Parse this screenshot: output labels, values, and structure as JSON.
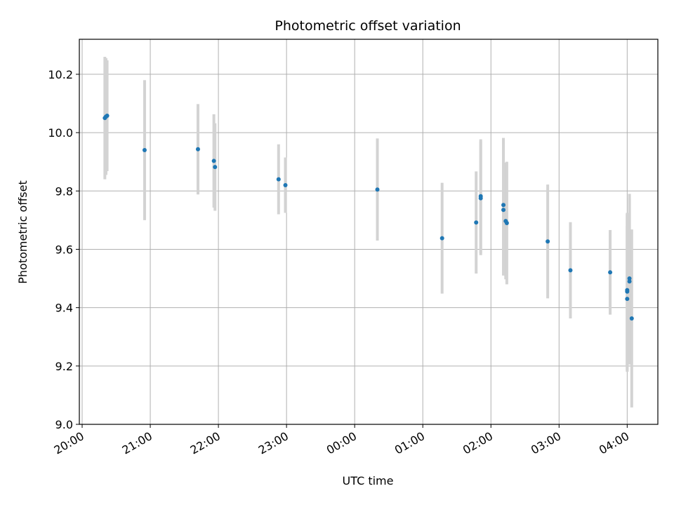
{
  "chart_data": {
    "type": "scatter",
    "title": "Photometric offset variation",
    "xlabel": "UTC time",
    "ylabel": "Photometric offset",
    "grid": true,
    "x_axis": "time (hours of night, 20:00 through 04:30 UTC)",
    "xlim": [
      "20:00",
      "04:27"
    ],
    "ylim": [
      9.0,
      10.32
    ],
    "x_ticks": [
      "20:00",
      "21:00",
      "22:00",
      "23:00",
      "00:00",
      "01:00",
      "02:00",
      "03:00",
      "04:00"
    ],
    "y_ticks": [
      "9.0",
      "9.2",
      "9.4",
      "9.6",
      "9.8",
      "10.0",
      "10.2"
    ],
    "colors": {
      "points": "#1f77b4",
      "error_bars": "#d3d3d3",
      "grid": "#b0b0b0"
    },
    "points": [
      {
        "time": "20:20",
        "y": 10.05,
        "err": 0.21
      },
      {
        "time": "20:21",
        "y": 10.055,
        "err": 0.2
      },
      {
        "time": "20:22",
        "y": 10.058,
        "err": 0.19
      },
      {
        "time": "20:55",
        "y": 9.94,
        "err": 0.24
      },
      {
        "time": "21:42",
        "y": 9.943,
        "err": 0.155
      },
      {
        "time": "21:56",
        "y": 9.903,
        "err": 0.16
      },
      {
        "time": "21:57",
        "y": 9.882,
        "err": 0.15
      },
      {
        "time": "22:53",
        "y": 9.84,
        "err": 0.12
      },
      {
        "time": "22:59",
        "y": 9.82,
        "err": 0.095
      },
      {
        "time": "00:20",
        "y": 9.805,
        "err": 0.175
      },
      {
        "time": "01:17",
        "y": 9.638,
        "err": 0.19
      },
      {
        "time": "01:47",
        "y": 9.692,
        "err": 0.175
      },
      {
        "time": "01:51",
        "y": 9.782,
        "err": 0.195
      },
      {
        "time": "01:51",
        "y": 9.775,
        "err": 0.195
      },
      {
        "time": "02:11",
        "y": 9.752,
        "err": 0.23
      },
      {
        "time": "02:11",
        "y": 9.735,
        "err": 0.225
      },
      {
        "time": "02:13",
        "y": 9.697,
        "err": 0.2
      },
      {
        "time": "02:14",
        "y": 9.69,
        "err": 0.21
      },
      {
        "time": "02:50",
        "y": 9.627,
        "err": 0.195
      },
      {
        "time": "03:10",
        "y": 9.528,
        "err": 0.165
      },
      {
        "time": "03:45",
        "y": 9.521,
        "err": 0.145
      },
      {
        "time": "04:00",
        "y": 9.455,
        "err": 0.27
      },
      {
        "time": "04:00",
        "y": 9.46,
        "err": 0.26
      },
      {
        "time": "04:00",
        "y": 9.43,
        "err": 0.25
      },
      {
        "time": "04:02",
        "y": 9.5,
        "err": 0.29
      },
      {
        "time": "04:02",
        "y": 9.49,
        "err": 0.285
      },
      {
        "time": "04:04",
        "y": 9.363,
        "err": 0.305
      }
    ]
  }
}
